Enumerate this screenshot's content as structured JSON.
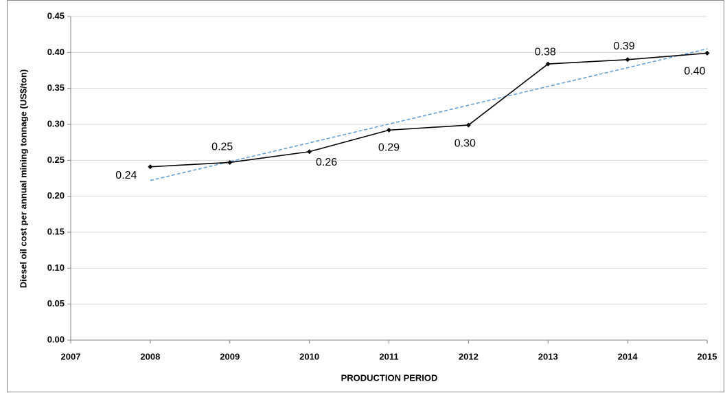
{
  "chart_data": {
    "type": "line",
    "x_label": "PRODUCTION PERIOD",
    "y_label": "Diesel oil cost per annual mining tonnage (US$/ton)",
    "x": [
      2008,
      2009,
      2010,
      2011,
      2012,
      2013,
      2014,
      2015
    ],
    "values": [
      0.241,
      0.247,
      0.262,
      0.292,
      0.299,
      0.384,
      0.39,
      0.399
    ],
    "value_labels": [
      "0.24",
      "0.25",
      "0.26",
      "0.29",
      "0.30",
      "0.38",
      "0.39",
      "0.40"
    ],
    "color": "#000000",
    "trendline": {
      "color": "#5b9bd5",
      "x": [
        2008,
        2015
      ],
      "values": [
        0.222,
        0.405
      ]
    },
    "xlim": [
      2007,
      2015
    ],
    "xticks": [
      2007,
      2008,
      2009,
      2010,
      2011,
      2012,
      2013,
      2014,
      2015
    ],
    "ylim": [
      0,
      0.45
    ],
    "yticks": [
      {
        "value": 0,
        "label": "0.00"
      },
      0.05,
      {
        "value": 0.1,
        "label": "0.10"
      },
      0.15,
      {
        "value": 0.2,
        "label": "0.20"
      },
      0.25,
      {
        "value": 0.3,
        "label": "0.30"
      },
      0.35,
      {
        "value": 0.4,
        "label": "0.40"
      },
      0.45
    ],
    "grid": true
  }
}
